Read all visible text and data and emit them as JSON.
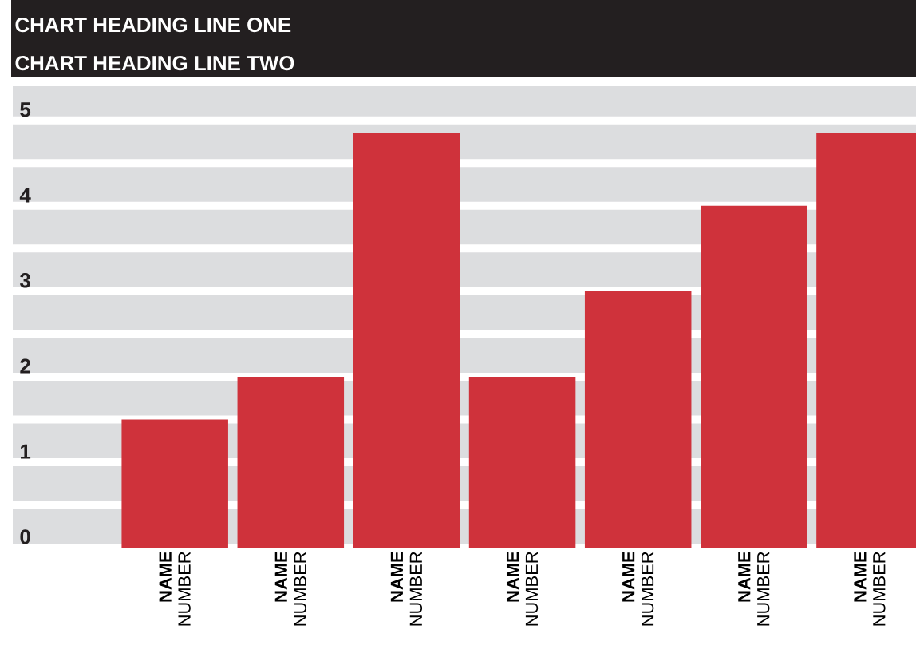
{
  "chart_data": {
    "type": "bar",
    "title": "CHART HEADING LINE ONE",
    "subtitle": "CHART HEADING LINE TWO",
    "categories": [
      "**NAME** NUMBER",
      "**NAME** NUMBER",
      "**NAME** NUMBER",
      "**NAME** NUMBER",
      "**NAME** NUMBER",
      "**NAME** NUMBER",
      "**NAME** NUMBER"
    ],
    "values": [
      1.5,
      2,
      4.85,
      2,
      3,
      4,
      4.85
    ],
    "color": "#cf323b",
    "ylim": [
      0,
      5.4
    ],
    "yticks": [
      0,
      {
        "value": 0.5,
        "label": null
      },
      1,
      {
        "value": 1.5,
        "label": null
      },
      2,
      {
        "value": 2.5,
        "label": null
      },
      3,
      {
        "value": 3.5,
        "label": null
      },
      4,
      {
        "value": 4.5,
        "label": null
      },
      5
    ],
    "grid": "y"
  }
}
